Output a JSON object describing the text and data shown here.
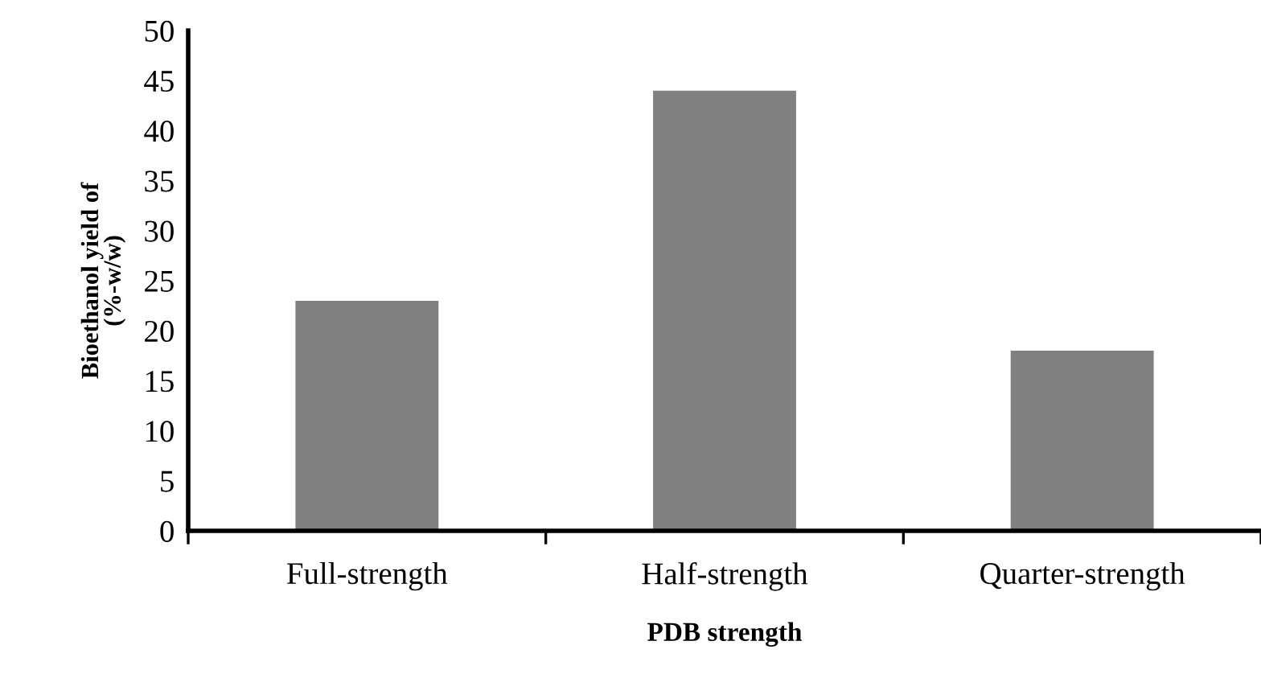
{
  "chart_data": {
    "type": "bar",
    "xlabel": "PDB strength",
    "ylabel": "Bioethanol yield of\n(%-w/w)",
    "categories": [
      "Full-strength",
      "Half-strength",
      "Quarter-strength"
    ],
    "series": [
      {
        "color": "#808080",
        "values": [
          23,
          44,
          18
        ]
      }
    ],
    "ylim": [
      0,
      50
    ],
    "yticks": [
      0,
      5,
      10,
      15,
      20,
      25,
      30,
      35,
      40,
      45,
      50
    ],
    "grid": false,
    "legend": false
  }
}
